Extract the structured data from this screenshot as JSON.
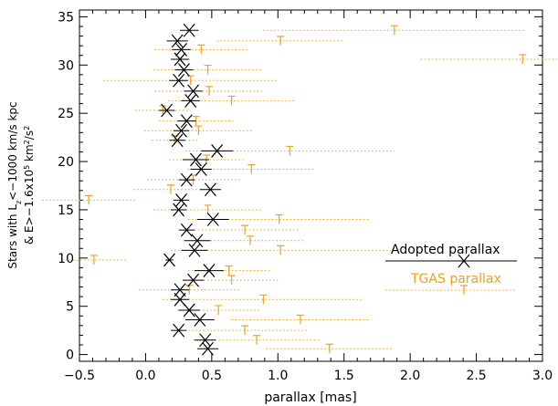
{
  "chart_data": {
    "type": "scatter",
    "xlabel": "parallax [mas]",
    "ylabel_lines": [
      [
        "Stars with L",
        "z",
        "<−1000 km/s kpc"
      ],
      [
        "& E>−1.6x10",
        "5",
        " km",
        "2",
        "/s",
        "2"
      ]
    ],
    "xlim": [
      -0.5,
      3.0
    ],
    "ylim": [
      -0.7,
      35.7
    ],
    "xticks": [
      {
        "value": -0.5,
        "label": "−0.5"
      },
      {
        "value": 0,
        "label": "0.0"
      },
      0.5,
      {
        "value": 1,
        "label": "1.0"
      },
      1.5,
      {
        "value": 2,
        "label": "2.0"
      },
      2.5,
      {
        "value": 3,
        "label": "3.0"
      }
    ],
    "yticks": [
      0,
      5,
      10,
      15,
      20,
      25,
      30,
      35
    ],
    "legend": "right",
    "y": [
      33.6,
      32.5,
      31.6,
      30.6,
      29.5,
      28.4,
      27.3,
      26.3,
      25.3,
      24.2,
      23.2,
      22.2,
      21.1,
      20.2,
      19.2,
      18.1,
      17.1,
      16.0,
      15.0,
      14.0,
      12.9,
      11.8,
      10.8,
      9.8,
      8.7,
      7.7,
      6.7,
      5.7,
      4.6,
      3.6,
      2.5,
      1.5,
      0.6
    ],
    "series": [
      {
        "name": "Adopted parallax",
        "color": "#000000",
        "marker": "x",
        "line": "solid",
        "x": [
          0.33,
          0.24,
          0.27,
          0.26,
          0.29,
          0.25,
          0.36,
          0.34,
          0.16,
          0.31,
          0.27,
          0.24,
          0.54,
          0.38,
          0.42,
          0.31,
          0.49,
          0.27,
          0.25,
          0.51,
          0.31,
          0.39,
          0.37,
          0.18,
          0.48,
          0.36,
          0.26,
          0.26,
          0.33,
          0.41,
          0.25,
          0.45,
          0.47
        ],
        "xerr": [
          0.07,
          0.08,
          0.07,
          0.07,
          0.07,
          0.07,
          0.07,
          0.07,
          0.06,
          0.07,
          0.06,
          0.06,
          0.12,
          0.1,
          0.08,
          0.06,
          0.08,
          0.06,
          0.06,
          0.12,
          0.06,
          0.1,
          0.1,
          0.03,
          0.11,
          0.08,
          0.07,
          0.07,
          0.08,
          0.11,
          0.06,
          0.08,
          0.08
        ]
      },
      {
        "name": "TGAS parallax",
        "color": "#f0a020",
        "marker": "T",
        "line": "dotted",
        "x": [
          1.88,
          1.02,
          0.42,
          2.85,
          0.47,
          0.34,
          0.48,
          0.65,
          0.13,
          0.38,
          0.4,
          0.22,
          1.09,
          0.46,
          0.8,
          0.36,
          0.19,
          -0.43,
          0.47,
          1.01,
          0.75,
          0.79,
          1.02,
          -0.39,
          0.63,
          0.65,
          0.33,
          0.89,
          0.55,
          1.17,
          0.75,
          0.84,
          1.39
        ],
        "xerr": [
          0.99,
          0.48,
          0.35,
          0.77,
          0.41,
          0.66,
          0.41,
          0.48,
          0.21,
          0.28,
          0.41,
          0.17,
          0.79,
          0.28,
          0.48,
          0.35,
          0.28,
          0.35,
          0.41,
          0.69,
          0.41,
          0.41,
          0.83,
          0.24,
          0.31,
          0.35,
          0.38,
          0.76,
          0.31,
          0.52,
          0.48,
          0.48,
          0.48
        ]
      }
    ]
  }
}
